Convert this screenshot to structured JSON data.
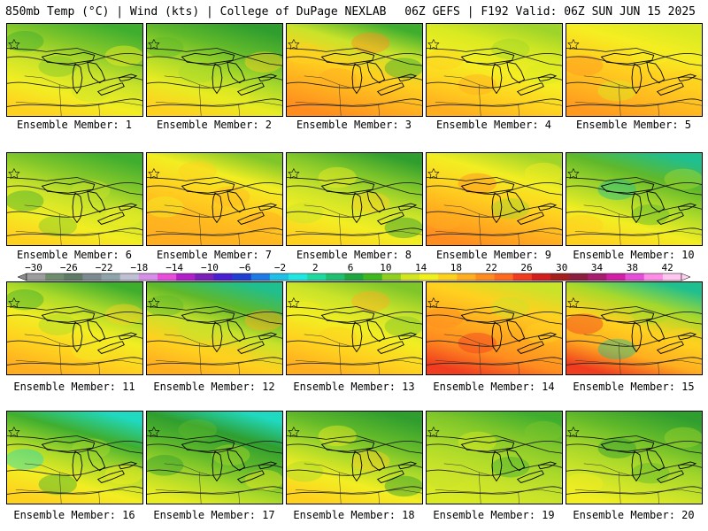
{
  "header": {
    "left": "850mb Temp (°C) | Wind (kts) | College of DuPage NEXLAB",
    "right": "06Z GEFS | F192 Valid: 06Z SUN JUN 15 2025"
  },
  "map_legend": {
    "ticks": [
      "-30",
      "-26",
      "-22",
      "-18",
      "-14",
      "-10",
      "-6",
      "-2",
      "2",
      "6",
      "10",
      "14",
      "18",
      "22",
      "26",
      "30",
      "34",
      "38",
      "42"
    ],
    "colors": [
      "#9d9d9d",
      "#6f8c6f",
      "#5f7a66",
      "#7c8a8f",
      "#8fa3ab",
      "#c0c0d4",
      "#d58fe6",
      "#e64dd9",
      "#b01fc7",
      "#7a1fb8",
      "#4a1fd1",
      "#1f3fd1",
      "#1f7ae6",
      "#1fbfe6",
      "#1fe6e0",
      "#1fd9a0",
      "#1fbf6f",
      "#1fa63f",
      "#3fb81f",
      "#8fcf1f",
      "#d1e61f",
      "#f0f01f",
      "#ffd11f",
      "#ffae1f",
      "#ff8c1f",
      "#ff6a1f",
      "#f03c1f",
      "#d11f1f",
      "#a61f1f",
      "#8a1f3f",
      "#a61f6f",
      "#d11fa6",
      "#e64dd9",
      "#ff8ce6",
      "#ffc7f0"
    ]
  },
  "members": [
    {
      "label": "Ensemble Member: 1",
      "fill": [
        "#3fae2f",
        "#7fc62a",
        "#c9e32a",
        "#f2ee22",
        "#ffd11f"
      ]
    },
    {
      "label": "Ensemble Member: 2",
      "fill": [
        "#2f9e2f",
        "#5fb82a",
        "#a9d92a",
        "#e8ec22",
        "#ffd11f"
      ]
    },
    {
      "label": "Ensemble Member: 3",
      "fill": [
        "#3fae2f",
        "#c9e32a",
        "#ffd11f",
        "#ffae1f",
        "#ff8c1f"
      ]
    },
    {
      "label": "Ensemble Member: 4",
      "fill": [
        "#9fd42a",
        "#d9ea22",
        "#f5ee22",
        "#ffd11f",
        "#ffae1f"
      ]
    },
    {
      "label": "Ensemble Member: 5",
      "fill": [
        "#d9ea22",
        "#f5ee22",
        "#ffd11f",
        "#ffb81f",
        "#ff9a1f"
      ]
    },
    {
      "label": "Ensemble Member: 6",
      "fill": [
        "#3fae2f",
        "#7fc62a",
        "#c9e32a",
        "#f2ee22",
        "#ffd11f"
      ]
    },
    {
      "label": "Ensemble Member: 7",
      "fill": [
        "#7fc62a",
        "#f2ee22",
        "#ffd11f",
        "#ffb81f",
        "#ffae1f"
      ]
    },
    {
      "label": "Ensemble Member: 8",
      "fill": [
        "#2f9e2f",
        "#7fc62a",
        "#c9e32a",
        "#f2ee22",
        "#ffd11f"
      ]
    },
    {
      "label": "Ensemble Member: 9",
      "fill": [
        "#9fd42a",
        "#f2ee22",
        "#ffd11f",
        "#ffae1f",
        "#ff8c1f"
      ]
    },
    {
      "label": "Ensemble Member: 10",
      "fill": [
        "#1fbf8f",
        "#5fb82a",
        "#a9d92a",
        "#f2ee22",
        "#ffd11f"
      ]
    },
    {
      "label": "Ensemble Member: 11",
      "fill": [
        "#3fae2f",
        "#a9d92a",
        "#f2ee22",
        "#ffd11f",
        "#ffae1f"
      ]
    },
    {
      "label": "Ensemble Member: 12",
      "fill": [
        "#1fbf8f",
        "#5fb82a",
        "#c9e32a",
        "#ffd11f",
        "#ffae1f"
      ]
    },
    {
      "label": "Ensemble Member: 13",
      "fill": [
        "#7fc62a",
        "#c9e32a",
        "#f2ee22",
        "#ffd11f",
        "#ffae1f"
      ]
    },
    {
      "label": "Ensemble Member: 14",
      "fill": [
        "#c9e32a",
        "#ffd11f",
        "#ffae1f",
        "#ff8c1f",
        "#f03c1f"
      ]
    },
    {
      "label": "Ensemble Member: 15",
      "fill": [
        "#1fbf8f",
        "#a9d92a",
        "#ffd11f",
        "#ffae1f",
        "#f03c1f"
      ]
    },
    {
      "label": "Ensemble Member: 16",
      "fill": [
        "#1fd9c0",
        "#3fae2f",
        "#a9d92a",
        "#f2ee22",
        "#ffd11f"
      ]
    },
    {
      "label": "Ensemble Member: 17",
      "fill": [
        "#1fd9c0",
        "#2f9e2f",
        "#5fb82a",
        "#a9d92a",
        "#e8ec22"
      ]
    },
    {
      "label": "Ensemble Member: 18",
      "fill": [
        "#2f9e2f",
        "#5fb82a",
        "#a9d92a",
        "#f2ee22",
        "#ffd11f"
      ]
    },
    {
      "label": "Ensemble Member: 19",
      "fill": [
        "#3fae2f",
        "#7fc62a",
        "#a9d92a",
        "#c9e32a",
        "#d9ea22"
      ]
    },
    {
      "label": "Ensemble Member: 20",
      "fill": [
        "#2f9e2f",
        "#5fb82a",
        "#9fd42a",
        "#c9e32a",
        "#f2ee22"
      ]
    }
  ]
}
